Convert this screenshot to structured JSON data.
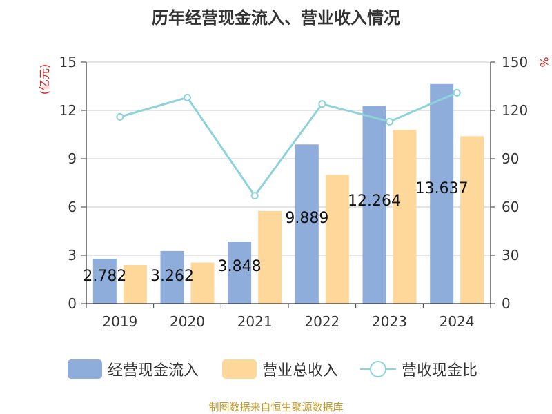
{
  "title": "历年经营现金流入、营业收入情况",
  "source": "制图数据来自恒生聚源数据库",
  "colors": {
    "cash_inflow": "#8eaddb",
    "revenue": "#fdd89a",
    "ratio": "#8dd3d9",
    "unit_label": "#e02020"
  },
  "chart_data": {
    "type": "bar",
    "categories": [
      "2019",
      "2020",
      "2021",
      "2022",
      "2023",
      "2024"
    ],
    "series": [
      {
        "name": "经营现金流入",
        "type": "bar",
        "axis": "left",
        "values": [
          2.782,
          3.262,
          3.848,
          9.889,
          12.264,
          13.637
        ],
        "labels": [
          "2.782",
          "3.262",
          "3.848",
          "9.889",
          "12.264",
          "13.637"
        ]
      },
      {
        "name": "营业总收入",
        "type": "bar",
        "axis": "left",
        "values": [
          2.4,
          2.55,
          5.75,
          8.0,
          10.8,
          10.4
        ]
      },
      {
        "name": "营收现金比",
        "type": "line",
        "axis": "right",
        "values": [
          116,
          128,
          67,
          124,
          113,
          131
        ]
      }
    ],
    "y_left": {
      "label": "(亿元)",
      "lim": [
        0,
        15
      ],
      "ticks": [
        "0",
        "3",
        "6",
        "9",
        "12",
        "15"
      ]
    },
    "y_right": {
      "label": "%",
      "lim": [
        0,
        150
      ],
      "ticks": [
        "0",
        "30",
        "60",
        "90",
        "120",
        "150"
      ]
    },
    "grid": true,
    "legend": "bottom"
  }
}
